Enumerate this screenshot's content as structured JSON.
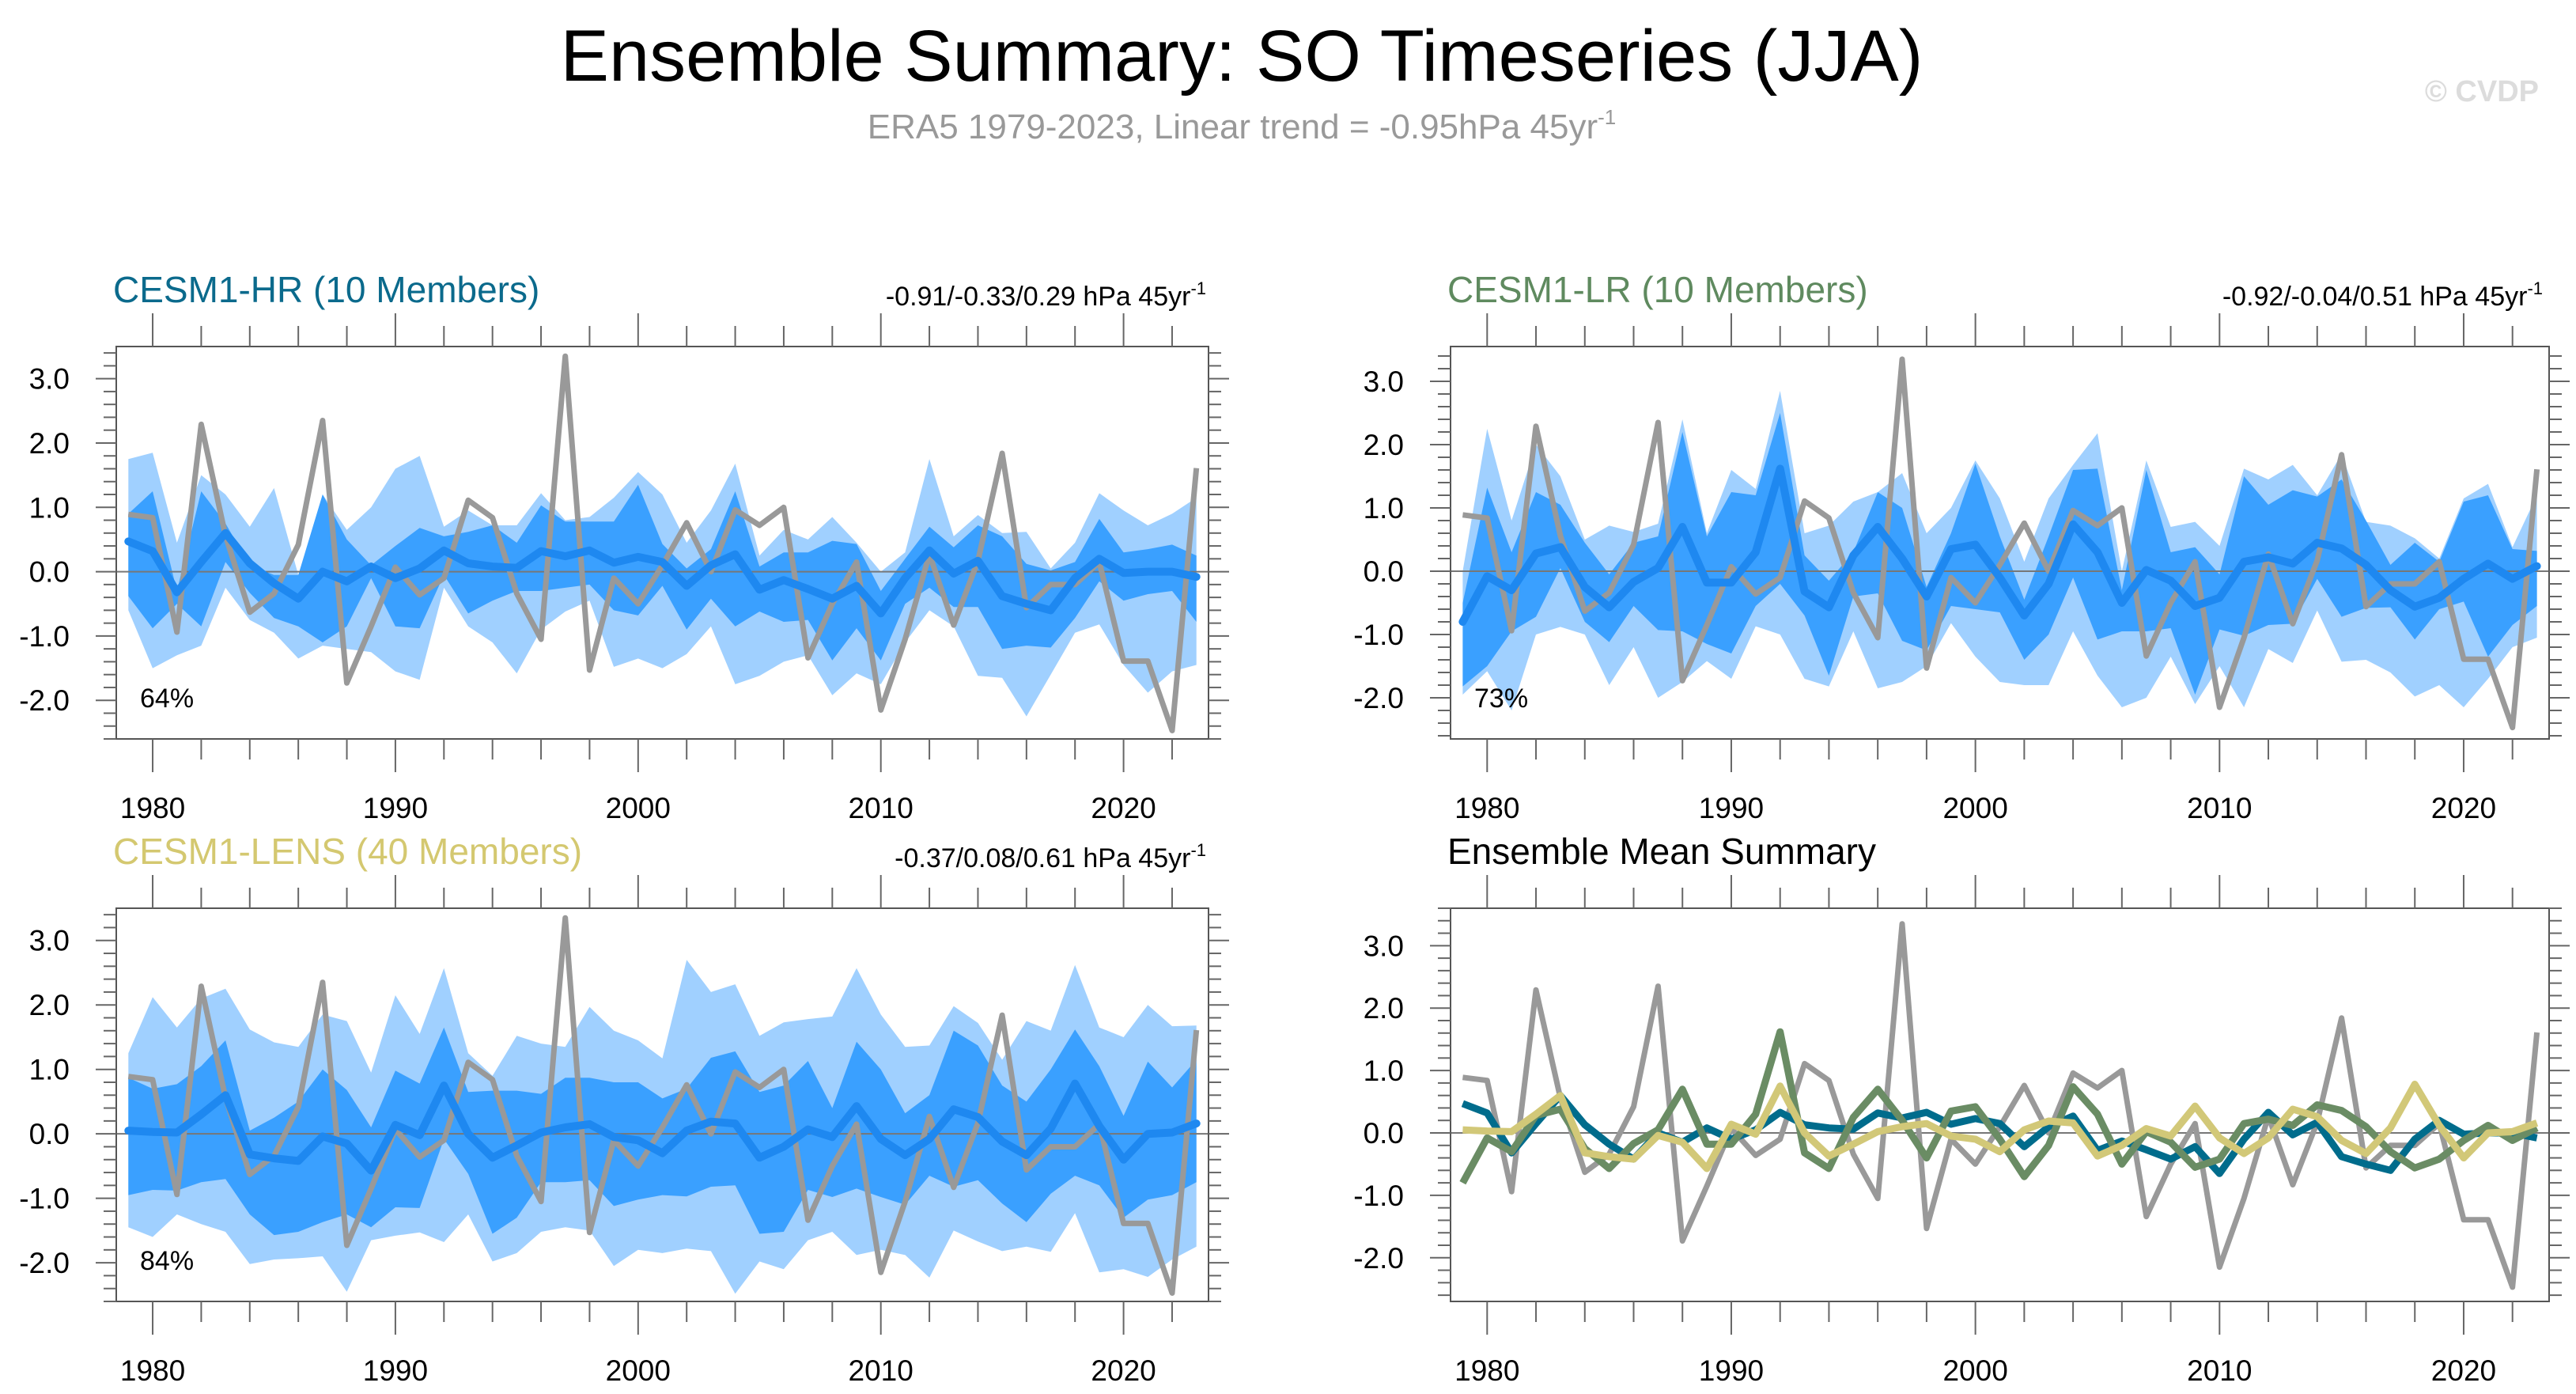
{
  "title": "Ensemble Summary: SO Timeseries (JJA)",
  "subtitle": {
    "text": "ERA5 1979-2023, Linear trend = -0.95hPa 45yr",
    "sup": "-1"
  },
  "watermark": "© CVDP",
  "colors": {
    "band_outer": "#a0d0ff",
    "band_inner": "#3aa0ff",
    "ensemble_mean": "#1e88f0",
    "era5": "#999999",
    "hr": "#006c8c",
    "lr": "#6a8c64",
    "lens": "#d2c878",
    "title_hr": "#0b6a8c",
    "title_lr": "#5f8a5f",
    "title_lens": "#d4c870"
  },
  "chart_data": [
    {
      "type": "area",
      "title": "CESM1-HR (10 Members)",
      "trend": {
        "text": "-0.91/-0.33/0.29 hPa 45yr",
        "sup": "-1"
      },
      "percent": "64%",
      "x_start": 1979,
      "xlim": [
        1978.5,
        2023.5
      ],
      "ylim": [
        -2.6,
        3.5
      ],
      "x_ticks": [
        "1980",
        "1990",
        "2000",
        "2010",
        "2020"
      ],
      "y_ticks": [
        "3.0",
        "2.0",
        "1.0",
        "0.0",
        "-1.0",
        "-2.0"
      ],
      "era5": [
        0.89,
        0.84,
        -0.94,
        2.29,
        0.56,
        -0.63,
        -0.34,
        0.42,
        2.35,
        -1.73,
        -0.85,
        0.07,
        -0.36,
        -0.1,
        1.11,
        0.84,
        -0.34,
        -1.05,
        3.35,
        -1.53,
        -0.1,
        -0.5,
        0.1,
        0.76,
        0.0,
        0.96,
        0.72,
        1.0,
        -1.34,
        -0.5,
        0.15,
        -2.15,
        -1.05,
        0.27,
        -0.83,
        0.17,
        1.84,
        -0.56,
        -0.2,
        -0.2,
        0.15,
        -1.39,
        -1.39,
        -2.47,
        1.61
      ],
      "mean": [
        0.47,
        0.32,
        -0.32,
        0.15,
        0.6,
        0.13,
        -0.18,
        -0.42,
        0.0,
        -0.15,
        0.08,
        -0.1,
        0.05,
        0.33,
        0.13,
        0.08,
        0.06,
        0.32,
        0.24,
        0.33,
        0.14,
        0.23,
        0.15,
        -0.22,
        0.1,
        0.27,
        -0.28,
        -0.13,
        -0.27,
        -0.42,
        -0.22,
        -0.65,
        -0.1,
        0.33,
        -0.03,
        0.17,
        -0.38,
        -0.5,
        -0.6,
        -0.1,
        0.2,
        -0.02,
        0.0,
        0.0,
        -0.08
      ],
      "outer_upper": [
        1.75,
        1.85,
        0.45,
        1.5,
        1.2,
        0.7,
        1.3,
        -0.05,
        1.2,
        0.65,
        1.0,
        1.6,
        1.8,
        0.7,
        0.95,
        0.72,
        0.72,
        1.22,
        0.8,
        0.85,
        1.15,
        1.55,
        1.2,
        0.45,
        0.95,
        1.68,
        0.25,
        0.65,
        0.5,
        0.85,
        0.45,
        0.0,
        0.3,
        1.75,
        0.55,
        0.88,
        0.6,
        0.62,
        0.05,
        0.45,
        1.22,
        0.95,
        0.72,
        0.9,
        1.15
      ],
      "inner_upper": [
        0.9,
        1.25,
        -0.3,
        1.25,
        0.75,
        0.1,
        -0.05,
        -0.05,
        1.2,
        0.5,
        0.1,
        0.4,
        0.68,
        0.55,
        0.62,
        0.72,
        0.45,
        1.03,
        0.78,
        0.78,
        0.78,
        1.35,
        0.43,
        0.05,
        0.35,
        1.25,
        0.08,
        0.3,
        0.3,
        0.48,
        0.43,
        -0.3,
        0.2,
        0.7,
        0.38,
        0.72,
        0.55,
        0.12,
        0.02,
        0.15,
        0.82,
        0.3,
        0.35,
        0.42,
        0.25
      ],
      "inner_lower": [
        -0.38,
        -0.88,
        -0.5,
        -0.85,
        0.15,
        -0.33,
        -0.72,
        -0.85,
        -1.1,
        -0.85,
        -0.1,
        -0.85,
        -0.88,
        -0.05,
        -0.65,
        -0.45,
        -0.3,
        -0.3,
        -0.25,
        -0.2,
        -0.6,
        -0.68,
        -0.22,
        -0.9,
        -0.42,
        -0.85,
        -0.62,
        -0.78,
        -0.75,
        -1.38,
        -0.88,
        -1.38,
        -0.5,
        -0.25,
        -0.55,
        -0.55,
        -1.2,
        -1.15,
        -1.18,
        -0.72,
        -0.15,
        -0.45,
        -0.35,
        -0.3,
        -0.78
      ],
      "outer_lower": [
        -0.6,
        -1.5,
        -1.3,
        -1.15,
        -0.25,
        -0.75,
        -0.95,
        -1.35,
        -1.15,
        -1.2,
        -1.25,
        -1.55,
        -1.68,
        -0.25,
        -0.85,
        -1.1,
        -1.58,
        -0.9,
        -0.62,
        -0.45,
        -1.48,
        -1.35,
        -1.5,
        -1.28,
        -0.85,
        -1.75,
        -1.62,
        -1.4,
        -1.3,
        -1.92,
        -1.58,
        -1.75,
        -1.1,
        -0.6,
        -0.85,
        -1.62,
        -1.65,
        -2.25,
        -1.6,
        -0.95,
        -0.82,
        -1.45,
        -1.88,
        -1.55,
        -1.45
      ]
    },
    {
      "type": "area",
      "title": "CESM1-LR (10 Members)",
      "trend": {
        "text": "-0.92/-0.04/0.51 hPa 45yr",
        "sup": "-1"
      },
      "percent": "73%",
      "x_start": 1979,
      "xlim": [
        1978.5,
        2023.5
      ],
      "ylim": [
        -2.65,
        3.55
      ],
      "x_ticks": [
        "1980",
        "1990",
        "2000",
        "2010",
        "2020"
      ],
      "y_ticks": [
        "3.0",
        "2.0",
        "1.0",
        "0.0",
        "-1.0",
        "-2.0"
      ],
      "era5": [
        0.89,
        0.84,
        -0.94,
        2.29,
        0.56,
        -0.63,
        -0.34,
        0.42,
        2.35,
        -1.73,
        -0.85,
        0.07,
        -0.36,
        -0.1,
        1.11,
        0.84,
        -0.34,
        -1.05,
        3.35,
        -1.53,
        -0.1,
        -0.5,
        0.1,
        0.76,
        0.0,
        0.96,
        0.72,
        1.0,
        -1.34,
        -0.5,
        0.15,
        -2.15,
        -1.05,
        0.27,
        -0.83,
        0.17,
        1.84,
        -0.56,
        -0.2,
        -0.2,
        0.15,
        -1.39,
        -1.39,
        -2.47,
        1.61
      ],
      "mean": [
        -0.8,
        -0.08,
        -0.3,
        0.28,
        0.38,
        -0.25,
        -0.57,
        -0.17,
        0.05,
        0.7,
        -0.18,
        -0.18,
        0.3,
        1.62,
        -0.32,
        -0.57,
        0.25,
        0.7,
        0.2,
        -0.4,
        0.35,
        0.42,
        -0.1,
        -0.7,
        -0.2,
        0.74,
        0.3,
        -0.5,
        0.02,
        -0.15,
        -0.55,
        -0.42,
        0.15,
        0.22,
        0.12,
        0.45,
        0.36,
        0.1,
        -0.3,
        -0.56,
        -0.42,
        -0.12,
        0.12,
        -0.12,
        0.08
      ],
      "outer_upper": [
        0.0,
        2.25,
        0.8,
        2.0,
        1.5,
        0.5,
        0.72,
        0.62,
        0.75,
        2.4,
        0.6,
        1.6,
        1.3,
        2.85,
        0.6,
        0.72,
        1.1,
        1.25,
        1.55,
        0.6,
        1.0,
        1.75,
        1.15,
        0.15,
        1.15,
        1.68,
        2.18,
        0.0,
        1.75,
        0.7,
        0.78,
        0.4,
        1.62,
        1.45,
        1.68,
        1.2,
        1.85,
        0.78,
        0.72,
        0.52,
        0.2,
        1.15,
        1.38,
        0.38,
        1.2
      ],
      "inner_upper": [
        -0.5,
        1.32,
        0.3,
        1.25,
        1.05,
        0.45,
        -0.05,
        0.45,
        0.55,
        2.2,
        0.55,
        1.25,
        1.2,
        2.5,
        0.25,
        -0.15,
        0.3,
        1.25,
        1.0,
        -0.25,
        0.6,
        1.7,
        0.55,
        -0.45,
        0.55,
        1.6,
        1.62,
        -0.3,
        1.6,
        0.3,
        0.38,
        -0.05,
        1.5,
        1.05,
        1.28,
        1.18,
        1.45,
        0.8,
        0.1,
        0.45,
        0.15,
        1.1,
        1.2,
        0.35,
        0.32
      ],
      "inner_lower": [
        -1.82,
        -1.5,
        -0.95,
        -0.72,
        0.05,
        -0.8,
        -1.12,
        -0.55,
        -0.93,
        -0.95,
        -1.15,
        -1.3,
        -0.55,
        -0.2,
        -0.7,
        -1.65,
        -0.4,
        -0.35,
        -1.1,
        -1.25,
        -0.55,
        -0.6,
        -0.65,
        -1.4,
        -1.0,
        -0.1,
        -1.08,
        -0.95,
        -0.95,
        -0.9,
        -1.95,
        -0.92,
        -1.02,
        -0.85,
        -0.83,
        -0.12,
        -0.72,
        -0.58,
        -0.57,
        -1.08,
        -0.6,
        -0.48,
        -1.35,
        -0.85,
        -0.55
      ],
      "outer_lower": [
        -1.95,
        -1.58,
        -2.2,
        -1.0,
        -0.88,
        -1.0,
        -1.8,
        -1.2,
        -2.0,
        -1.75,
        -1.42,
        -1.7,
        -0.87,
        -1.0,
        -1.7,
        -1.82,
        -0.95,
        -1.85,
        -1.75,
        -1.5,
        -0.82,
        -1.35,
        -1.75,
        -1.8,
        -1.8,
        -0.95,
        -1.65,
        -2.15,
        -2.0,
        -1.35,
        -2.1,
        -1.5,
        -2.15,
        -1.23,
        -1.45,
        -0.62,
        -1.43,
        -1.4,
        -1.6,
        -1.98,
        -1.8,
        -2.15,
        -1.7,
        -1.2,
        -1.05
      ]
    },
    {
      "type": "area",
      "title": "CESM1-LENS (40 Members)",
      "trend": {
        "text": "-0.37/0.08/0.61 hPa 45yr",
        "sup": "-1"
      },
      "percent": "84%",
      "x_start": 1979,
      "xlim": [
        1978.5,
        2023.5
      ],
      "ylim": [
        -2.6,
        3.5
      ],
      "x_ticks": [
        "1980",
        "1990",
        "2000",
        "2010",
        "2020"
      ],
      "y_ticks": [
        "3.0",
        "2.0",
        "1.0",
        "0.0",
        "-1.0",
        "-2.0"
      ],
      "era5": [
        0.89,
        0.84,
        -0.94,
        2.29,
        0.56,
        -0.63,
        -0.34,
        0.42,
        2.35,
        -1.73,
        -0.85,
        0.07,
        -0.36,
        -0.1,
        1.11,
        0.84,
        -0.34,
        -1.05,
        3.35,
        -1.53,
        -0.1,
        -0.5,
        0.1,
        0.76,
        0.0,
        0.96,
        0.72,
        1.0,
        -1.34,
        -0.5,
        0.15,
        -2.15,
        -1.05,
        0.27,
        -0.83,
        0.17,
        1.84,
        -0.56,
        -0.2,
        -0.2,
        0.15,
        -1.39,
        -1.39,
        -2.47,
        1.61
      ],
      "mean": [
        0.05,
        0.03,
        0.02,
        0.3,
        0.6,
        -0.32,
        -0.38,
        -0.42,
        -0.04,
        -0.15,
        -0.57,
        0.14,
        -0.02,
        0.75,
        0.0,
        -0.37,
        -0.18,
        0.02,
        0.1,
        0.15,
        -0.05,
        -0.1,
        -0.3,
        0.05,
        0.19,
        0.16,
        -0.37,
        -0.2,
        0.07,
        -0.05,
        0.43,
        -0.08,
        -0.33,
        -0.08,
        0.38,
        0.26,
        -0.12,
        -0.33,
        0.08,
        0.78,
        0.12,
        -0.4,
        0.0,
        0.02,
        0.16
      ],
      "outer_upper": [
        1.25,
        2.12,
        1.65,
        2.1,
        2.25,
        1.62,
        1.42,
        1.35,
        1.85,
        1.75,
        0.95,
        2.15,
        1.55,
        2.57,
        1.25,
        0.9,
        1.52,
        1.4,
        1.35,
        1.97,
        1.6,
        1.45,
        1.17,
        2.7,
        2.2,
        2.32,
        1.52,
        1.73,
        1.78,
        1.82,
        2.57,
        1.85,
        1.35,
        1.37,
        1.98,
        1.72,
        1.15,
        1.75,
        1.6,
        2.62,
        1.65,
        1.5,
        2.0,
        1.67,
        1.68
      ],
      "inner_upper": [
        0.87,
        0.7,
        0.77,
        1.05,
        1.45,
        0.05,
        0.25,
        0.5,
        1.0,
        0.68,
        0.1,
        0.98,
        0.78,
        1.65,
        0.65,
        0.67,
        0.67,
        0.62,
        0.87,
        0.87,
        0.8,
        0.8,
        0.55,
        0.7,
        1.18,
        1.28,
        0.65,
        0.75,
        1.13,
        0.4,
        1.43,
        1.0,
        0.32,
        0.6,
        1.6,
        1.37,
        0.75,
        0.5,
        1.0,
        1.62,
        1.05,
        0.28,
        1.12,
        0.72,
        1.15
      ],
      "inner_lower": [
        -0.95,
        -0.87,
        -0.88,
        -0.75,
        -0.7,
        -1.25,
        -1.57,
        -1.52,
        -1.37,
        -1.25,
        -1.45,
        -1.14,
        -1.15,
        -0.08,
        -0.62,
        -1.55,
        -1.3,
        -0.75,
        -0.75,
        -0.72,
        -1.12,
        -1.02,
        -0.95,
        -0.97,
        -0.82,
        -0.8,
        -1.55,
        -1.52,
        -0.87,
        -0.98,
        -0.85,
        -0.98,
        -1.1,
        -0.65,
        -0.82,
        -0.72,
        -1.08,
        -1.37,
        -0.93,
        -0.65,
        -0.8,
        -1.3,
        -1.02,
        -0.95,
        -0.75
      ],
      "outer_lower": [
        -1.45,
        -1.6,
        -1.25,
        -1.4,
        -1.52,
        -2.02,
        -1.95,
        -1.93,
        -1.9,
        -2.45,
        -1.65,
        -1.58,
        -1.53,
        -1.68,
        -1.25,
        -1.98,
        -1.85,
        -1.52,
        -1.45,
        -1.5,
        -2.05,
        -1.8,
        -1.85,
        -1.78,
        -1.82,
        -2.48,
        -1.98,
        -2.1,
        -1.65,
        -1.52,
        -1.88,
        -1.8,
        -1.88,
        -2.23,
        -1.5,
        -1.67,
        -1.82,
        -1.75,
        -1.83,
        -1.23,
        -2.15,
        -2.1,
        -2.22,
        -1.95,
        -1.75
      ]
    },
    {
      "type": "line",
      "title": "Ensemble Mean Summary",
      "x_start": 1979,
      "xlim": [
        1978.5,
        2023.5
      ],
      "ylim": [
        -2.7,
        3.6
      ],
      "x_ticks": [
        "1980",
        "1990",
        "2000",
        "2010",
        "2020"
      ],
      "y_ticks": [
        "3.0",
        "2.0",
        "1.0",
        "0.0",
        "-1.0",
        "-2.0"
      ],
      "series": [
        {
          "name": "ERA5",
          "color_key": "era5",
          "values": [
            0.89,
            0.84,
            -0.94,
            2.29,
            0.56,
            -0.63,
            -0.34,
            0.42,
            2.35,
            -1.73,
            -0.85,
            0.07,
            -0.36,
            -0.1,
            1.11,
            0.84,
            -0.34,
            -1.05,
            3.35,
            -1.53,
            -0.1,
            -0.5,
            0.1,
            0.76,
            0.0,
            0.96,
            0.72,
            1.0,
            -1.34,
            -0.5,
            0.15,
            -2.15,
            -1.05,
            0.27,
            -0.83,
            0.17,
            1.84,
            -0.56,
            -0.2,
            -0.2,
            0.15,
            -1.39,
            -1.39,
            -2.47,
            1.61
          ]
        },
        {
          "name": "CESM1-HR",
          "color_key": "hr",
          "values": [
            0.47,
            0.32,
            -0.32,
            0.15,
            0.6,
            0.13,
            -0.18,
            -0.42,
            0.0,
            -0.15,
            0.08,
            -0.1,
            0.05,
            0.33,
            0.13,
            0.08,
            0.06,
            0.32,
            0.24,
            0.33,
            0.14,
            0.23,
            0.15,
            -0.22,
            0.1,
            0.27,
            -0.28,
            -0.13,
            -0.27,
            -0.42,
            -0.22,
            -0.65,
            -0.1,
            0.33,
            -0.03,
            0.17,
            -0.38,
            -0.5,
            -0.6,
            -0.1,
            0.2,
            -0.02,
            0.0,
            0.0,
            -0.08
          ]
        },
        {
          "name": "CESM1-LR",
          "color_key": "lr",
          "values": [
            -0.8,
            -0.08,
            -0.3,
            0.28,
            0.38,
            -0.25,
            -0.57,
            -0.17,
            0.05,
            0.7,
            -0.18,
            -0.18,
            0.3,
            1.62,
            -0.32,
            -0.57,
            0.25,
            0.7,
            0.2,
            -0.4,
            0.35,
            0.42,
            -0.1,
            -0.7,
            -0.2,
            0.74,
            0.3,
            -0.5,
            0.02,
            -0.15,
            -0.55,
            -0.42,
            0.15,
            0.22,
            0.12,
            0.45,
            0.36,
            0.1,
            -0.3,
            -0.56,
            -0.42,
            -0.12,
            0.12,
            -0.12,
            0.08
          ]
        },
        {
          "name": "CESM1-LENS",
          "color_key": "lens",
          "values": [
            0.05,
            0.03,
            0.02,
            0.3,
            0.6,
            -0.32,
            -0.38,
            -0.42,
            -0.04,
            -0.15,
            -0.57,
            0.14,
            -0.02,
            0.75,
            0.0,
            -0.37,
            -0.18,
            0.02,
            0.1,
            0.15,
            -0.05,
            -0.1,
            -0.3,
            0.05,
            0.19,
            0.16,
            -0.37,
            -0.2,
            0.07,
            -0.05,
            0.43,
            -0.08,
            -0.33,
            -0.08,
            0.38,
            0.26,
            -0.12,
            -0.33,
            0.08,
            0.78,
            0.12,
            -0.4,
            0.0,
            0.02,
            0.16
          ]
        }
      ]
    }
  ]
}
